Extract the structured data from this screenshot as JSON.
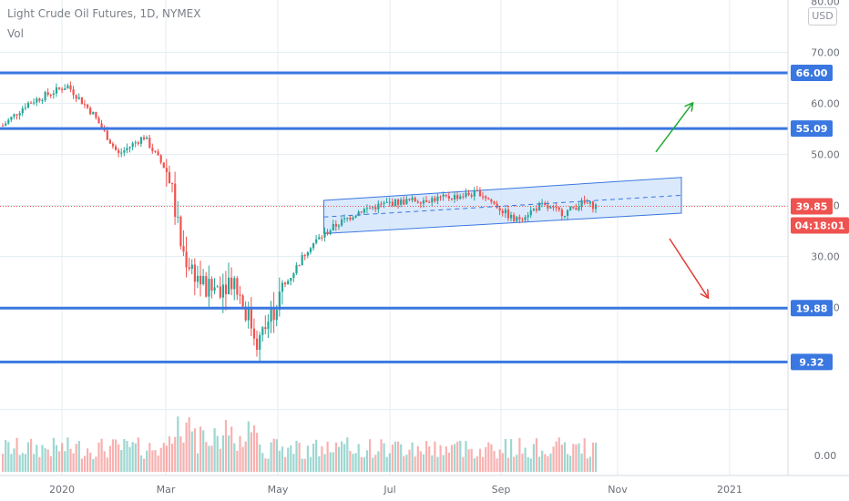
{
  "header": {
    "title": "Light Crude Oil Futures, 1D, NYMEX",
    "volume_label": "Vol",
    "currency": "USD"
  },
  "colors": {
    "up": "#26a69a",
    "down": "#ef5350",
    "level_line": "#3a77e0",
    "channel_fill": "#cfe2fb",
    "channel_stroke": "#3a77e0",
    "arrow_up": "#22aa33",
    "arrow_down": "#e53935",
    "price_line": "#ef5350",
    "grid": "#e3eef2"
  },
  "chart_data": {
    "type": "candlestick",
    "instrument": "Light Crude Oil Futures",
    "interval": "1D",
    "exchange": "NYMEX",
    "y_ticks": [
      "80.00",
      "70.00",
      "60.00",
      "50.00",
      "40.00",
      "30.00",
      "20.00",
      "0.00"
    ],
    "y_tick_values": [
      80,
      70,
      60,
      50,
      40,
      30,
      20,
      0
    ],
    "x_ticks": [
      "2020",
      "Mar",
      "May",
      "Jul",
      "Sep",
      "Nov",
      "2021"
    ],
    "horizontal_levels": [
      {
        "label": "66.00",
        "value": 66.0
      },
      {
        "label": "55.09",
        "value": 55.09
      },
      {
        "label": "19.88",
        "value": 19.88
      },
      {
        "label": "9.32",
        "value": 9.32
      }
    ],
    "last_price": {
      "label": "39.85",
      "value": 39.85
    },
    "countdown": "04:18:01",
    "approx_closes": [
      {
        "date": "2019-12-01",
        "close": 55.5
      },
      {
        "date": "2019-12-15",
        "close": 60.0
      },
      {
        "date": "2020-01-06",
        "close": 63.5
      },
      {
        "date": "2020-01-20",
        "close": 58.0
      },
      {
        "date": "2020-02-03",
        "close": 50.0
      },
      {
        "date": "2020-02-17",
        "close": 53.5
      },
      {
        "date": "2020-03-02",
        "close": 46.0
      },
      {
        "date": "2020-03-09",
        "close": 31.0
      },
      {
        "date": "2020-03-23",
        "close": 23.0
      },
      {
        "date": "2020-04-06",
        "close": 26.0
      },
      {
        "date": "2020-04-20",
        "close": 13.0
      },
      {
        "date": "2020-05-04",
        "close": 24.0
      },
      {
        "date": "2020-05-18",
        "close": 32.0
      },
      {
        "date": "2020-06-01",
        "close": 36.0
      },
      {
        "date": "2020-06-15",
        "close": 39.0
      },
      {
        "date": "2020-07-01",
        "close": 40.5
      },
      {
        "date": "2020-07-15",
        "close": 41.0
      },
      {
        "date": "2020-08-01",
        "close": 41.5
      },
      {
        "date": "2020-08-20",
        "close": 42.5
      },
      {
        "date": "2020-09-08",
        "close": 37.0
      },
      {
        "date": "2020-09-22",
        "close": 40.0
      },
      {
        "date": "2020-10-05",
        "close": 38.5
      },
      {
        "date": "2020-10-15",
        "close": 40.5
      },
      {
        "date": "2020-10-23",
        "close": 39.85
      }
    ],
    "channel": {
      "start_date": "2020-05-26",
      "end_date": "2020-12-15",
      "upper": [
        41.0,
        45.5
      ],
      "lower": [
        34.5,
        38.5
      ]
    },
    "projection_arrows": [
      {
        "direction": "up",
        "from": 50.5,
        "to": 60.0
      },
      {
        "direction": "down",
        "from": 33.5,
        "to": 22.0
      }
    ],
    "grid": true
  }
}
